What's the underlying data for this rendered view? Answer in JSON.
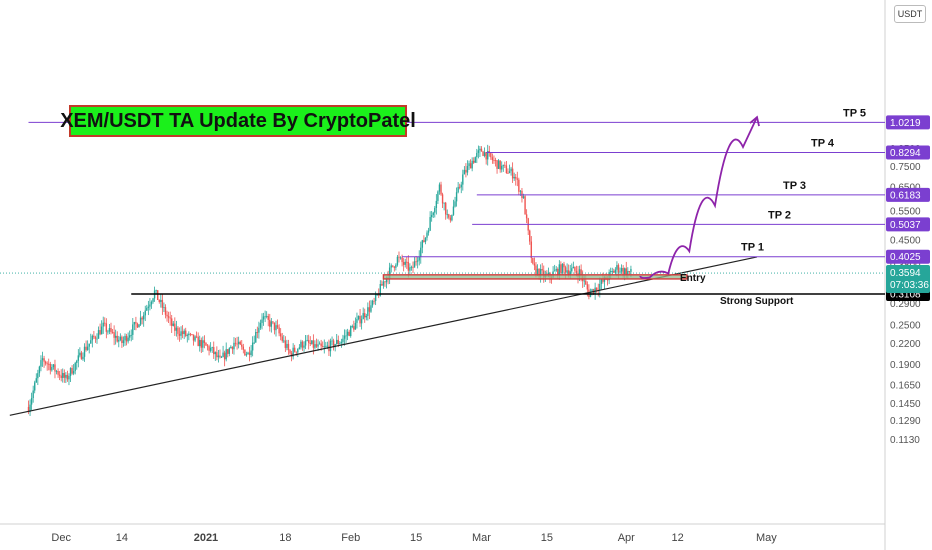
{
  "currency": "USDT",
  "title": "XEM/USDT TA Update By CryptoPatel",
  "colors": {
    "up": "#26a69a",
    "down": "#ef5350",
    "target": "#7b3fd0",
    "support": "#000000",
    "entry_fill": "#8fbc8f",
    "entry_border": "#d33d3d",
    "arrow": "#8e24aa",
    "title_bg": "#1bf01b"
  },
  "chart_data": {
    "type": "candlestick",
    "y_scale": "log",
    "ylim": [
      0.1,
      1.1
    ],
    "y_ticks": [
      "0.1130",
      "0.1290",
      "0.1450",
      "0.1650",
      "0.1900",
      "0.2200",
      "0.2500",
      "0.2900",
      "0.3300",
      "0.3800",
      "0.4500",
      "0.5500",
      "0.6500",
      "0.7500",
      "0.8500"
    ],
    "x_ticks": [
      "Dec",
      "14",
      "2021",
      "18",
      "Feb",
      "15",
      "Mar",
      "15",
      "Apr",
      "12",
      "May"
    ],
    "x_range": [
      "2020-11-24",
      "2021-05-12"
    ],
    "price_path": [
      [
        "2020-11-24",
        0.142
      ],
      [
        "2020-11-27",
        0.198
      ],
      [
        "2020-12-02",
        0.172
      ],
      [
        "2020-12-06",
        0.212
      ],
      [
        "2020-12-10",
        0.248
      ],
      [
        "2020-12-14",
        0.222
      ],
      [
        "2020-12-18",
        0.262
      ],
      [
        "2020-12-21",
        0.315
      ],
      [
        "2020-12-25",
        0.245
      ],
      [
        "2020-12-29",
        0.228
      ],
      [
        "2021-01-02",
        0.212
      ],
      [
        "2021-01-04",
        0.195
      ],
      [
        "2021-01-07",
        0.222
      ],
      [
        "2021-01-10",
        0.205
      ],
      [
        "2021-01-13",
        0.265
      ],
      [
        "2021-01-16",
        0.245
      ],
      [
        "2021-01-19",
        0.205
      ],
      [
        "2021-01-22",
        0.222
      ],
      [
        "2021-01-26",
        0.212
      ],
      [
        "2021-01-30",
        0.225
      ],
      [
        "2021-02-03",
        0.262
      ],
      [
        "2021-02-06",
        0.292
      ],
      [
        "2021-02-08",
        0.338
      ],
      [
        "2021-02-11",
        0.398
      ],
      [
        "2021-02-14",
        0.365
      ],
      [
        "2021-02-17",
        0.462
      ],
      [
        "2021-02-20",
        0.655
      ],
      [
        "2021-02-22",
        0.512
      ],
      [
        "2021-02-25",
        0.705
      ],
      [
        "2021-02-27",
        0.782
      ],
      [
        "2021-03-01",
        0.842
      ],
      [
        "2021-03-05",
        0.752
      ],
      [
        "2021-03-08",
        0.712
      ],
      [
        "2021-03-10",
        0.598
      ],
      [
        "2021-03-12",
        0.372
      ],
      [
        "2021-03-15",
        0.348
      ],
      [
        "2021-03-18",
        0.372
      ],
      [
        "2021-03-22",
        0.362
      ],
      [
        "2021-03-24",
        0.312
      ],
      [
        "2021-03-27",
        0.338
      ],
      [
        "2021-03-30",
        0.372
      ],
      [
        "2021-04-02",
        0.3594
      ]
    ],
    "current_price": "0.3594",
    "countdown": "07:03:36",
    "levels": [
      {
        "label": "TP 5",
        "value": "1.0219"
      },
      {
        "label": "TP 4",
        "value": "0.8294"
      },
      {
        "label": "TP 3",
        "value": "0.6183"
      },
      {
        "label": "TP 2",
        "value": "0.5037"
      },
      {
        "label": "TP 1",
        "value": "0.4025"
      }
    ],
    "support": {
      "label": "Strong Support",
      "value": "0.3108"
    },
    "entry": {
      "label": "Entry",
      "low": 0.345,
      "high": 0.355,
      "start": "2021-02-08",
      "end": "2021-04-14"
    },
    "trendline": [
      [
        "2020-11-20",
        0.134
      ],
      [
        "2021-04-29",
        0.402
      ]
    ],
    "projection": [
      [
        "2021-04-04",
        0.352
      ],
      [
        "2021-04-08",
        0.345
      ],
      [
        "2021-04-12",
        0.372
      ],
      [
        "2021-04-17",
        0.47
      ],
      [
        "2021-04-23",
        0.7
      ],
      [
        "2021-04-29",
        1.06
      ]
    ]
  }
}
